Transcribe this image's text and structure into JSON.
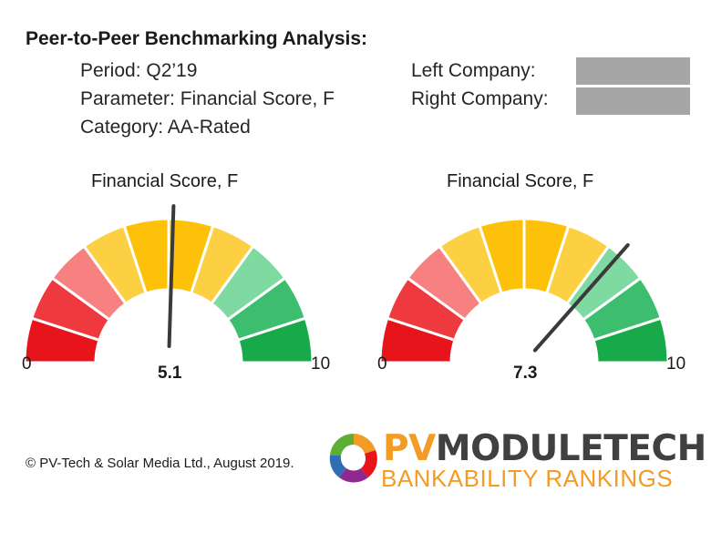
{
  "header": {
    "title": "Peer-to-Peer Benchmarking Analysis:",
    "period": "Period: Q2’19",
    "parameter": "Parameter: Financial Score, F",
    "category": "Category: AA-Rated",
    "left_company_label": "Left Company:",
    "right_company_label": "Right Company:"
  },
  "footer": {
    "copyright": "© PV-Tech & Solar Media Ltd., August 2019."
  },
  "logo": {
    "brand_pv": "PV",
    "brand_rest": "MODULETECH",
    "tagline": "BANKABILITY RANKINGS",
    "colors": {
      "pv": "#f39c25",
      "moduletech": "#404040",
      "tagline": "#f39c25"
    }
  },
  "chart_data": [
    {
      "type": "gauge",
      "title": "Financial Score, F",
      "min": 0,
      "max": 10,
      "min_label": "0",
      "max_label": "10",
      "value": 5.1,
      "value_label": "5.1",
      "segment_colors": [
        "#e8141c",
        "#ee3a3f",
        "#f78080",
        "#fdd043",
        "#fdc10a",
        "#fdc10a",
        "#fdd043",
        "#7fdaa2",
        "#3cbe6e",
        "#17a94a"
      ]
    },
    {
      "type": "gauge",
      "title": "Financial Score, F",
      "min": 0,
      "max": 10,
      "min_label": "0",
      "max_label": "10",
      "value": 7.3,
      "value_label": "7.3",
      "segment_colors": [
        "#e8141c",
        "#ee3a3f",
        "#f78080",
        "#fdd043",
        "#fdc10a",
        "#fdc10a",
        "#fdd043",
        "#7fdaa2",
        "#3cbe6e",
        "#17a94a"
      ]
    }
  ]
}
